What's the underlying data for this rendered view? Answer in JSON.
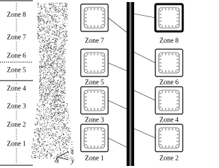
{
  "zones": [
    "Zone 8",
    "Zone 7",
    "Zone 6",
    "Zone 5",
    "Zone 4",
    "Zone 3",
    "Zone 2",
    "Zone 1"
  ],
  "axes": [
    "z",
    "x",
    "y"
  ],
  "panels": [
    {
      "label": "Zone 7"
    },
    {
      "label": "Zone 8"
    },
    {
      "label": "Zone 5"
    },
    {
      "label": "Zone 6"
    },
    {
      "label": "Zone 3"
    },
    {
      "label": "Zone 4"
    },
    {
      "label": "Zone 1"
    },
    {
      "label": "Zone 2"
    }
  ]
}
